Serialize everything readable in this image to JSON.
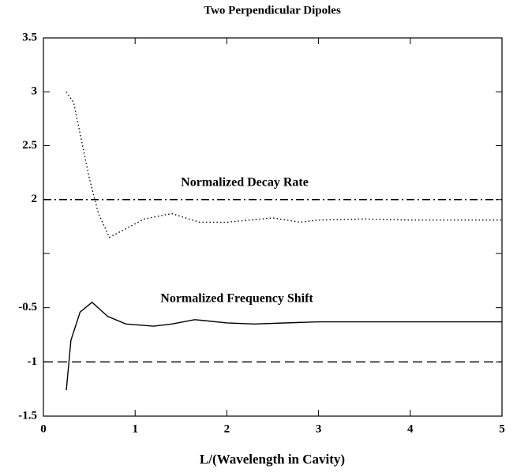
{
  "chart_data": [
    {
      "type": "line",
      "title": "Two Perpendicular Dipoles",
      "annotation": "Normalized Decay Rate",
      "ylim": [
        1.5,
        3.5
      ],
      "yticks": [
        2,
        2.5,
        3,
        3.5
      ],
      "xlim": [
        0,
        5
      ],
      "series": [
        {
          "style": "dotted",
          "color": "#000000",
          "x": [
            0.25,
            0.33,
            0.5,
            0.6,
            0.72,
            0.9,
            1.1,
            1.4,
            1.7,
            2.0,
            2.5,
            2.8,
            3.0,
            3.5,
            4.0,
            4.5,
            5.0
          ],
          "values": [
            3.0,
            2.9,
            2.2,
            1.87,
            1.65,
            1.73,
            1.82,
            1.87,
            1.79,
            1.79,
            1.83,
            1.79,
            1.81,
            1.82,
            1.81,
            1.81,
            1.81
          ]
        },
        {
          "style": "dashdot",
          "color": "#000000",
          "x": [
            0,
            5
          ],
          "values": [
            2,
            2
          ]
        }
      ]
    },
    {
      "type": "line",
      "annotation": "Normalized Frequency Shift",
      "xlabel": "L/(Wavelength in Cavity)",
      "ylim": [
        -1.5,
        0
      ],
      "yticks": [
        -1.5,
        -1,
        -0.5
      ],
      "xlim": [
        0,
        5
      ],
      "xticks": [
        0,
        1,
        2,
        3,
        4,
        5
      ],
      "series": [
        {
          "style": "solid",
          "color": "#000000",
          "x": [
            0.25,
            0.3,
            0.4,
            0.53,
            0.7,
            0.9,
            1.2,
            1.4,
            1.65,
            2.0,
            2.3,
            3.0,
            4.0,
            5.0
          ],
          "values": [
            -1.26,
            -0.8,
            -0.54,
            -0.45,
            -0.58,
            -0.65,
            -0.67,
            -0.65,
            -0.61,
            -0.64,
            -0.65,
            -0.63,
            -0.63,
            -0.63
          ]
        },
        {
          "style": "dashed",
          "color": "#000000",
          "x": [
            0,
            5
          ],
          "values": [
            -1,
            -1
          ]
        }
      ]
    }
  ]
}
